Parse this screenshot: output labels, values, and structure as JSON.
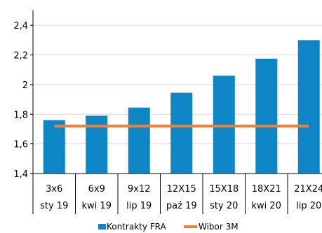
{
  "chart_data": {
    "type": "bar",
    "categories": [
      {
        "tenor": "3x6",
        "date": "sty 19"
      },
      {
        "tenor": "6x9",
        "date": "kwi 19"
      },
      {
        "tenor": "9x12",
        "date": "lip 19"
      },
      {
        "tenor": "12X15",
        "date": "paź 19"
      },
      {
        "tenor": "15X18",
        "date": "sty 20"
      },
      {
        "tenor": "18X21",
        "date": "kwi 20"
      },
      {
        "tenor": "21X24",
        "date": "lip 20"
      }
    ],
    "series": [
      {
        "name": "Kontrakty FRA",
        "type": "bar",
        "color": "#0e86c6",
        "values": [
          1.76,
          1.79,
          1.845,
          1.945,
          2.06,
          2.175,
          2.3
        ]
      },
      {
        "name": "Wibor 3M",
        "type": "line",
        "color": "#e8823a",
        "values": [
          1.72,
          1.72,
          1.72,
          1.72,
          1.72,
          1.72,
          1.72
        ]
      }
    ],
    "yticks": [
      "1,4",
      "1,6",
      "1,8",
      "2",
      "2,2",
      "2,4"
    ],
    "ylim": [
      1.4,
      2.5
    ],
    "grid": true,
    "legend_position": "bottom"
  }
}
